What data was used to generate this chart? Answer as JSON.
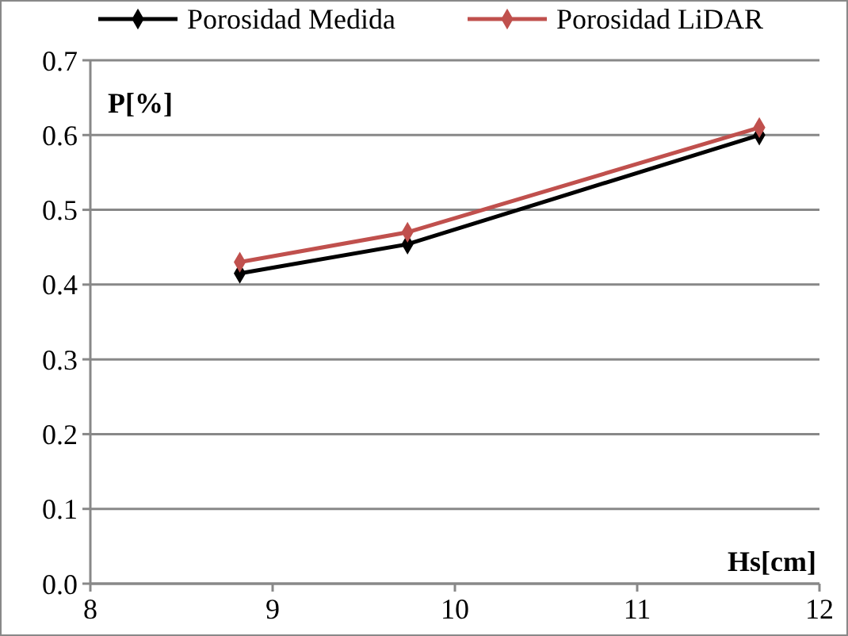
{
  "chart_data": {
    "type": "line",
    "xlabel": "Hs[cm]",
    "ylabel": "P[%]",
    "x": [
      8.82,
      9.74,
      11.67
    ],
    "series": [
      {
        "name": "Porosidad Medida",
        "color": "#000000",
        "values": [
          0.415,
          0.454,
          0.6
        ]
      },
      {
        "name": "Porosidad LiDAR",
        "color": "#c0504d",
        "values": [
          0.43,
          0.47,
          0.61
        ]
      }
    ],
    "xlim": [
      8,
      12
    ],
    "xticks": [
      8,
      9,
      10,
      11,
      12
    ],
    "ylim": [
      0,
      0.7
    ],
    "yticks": [
      {
        "value": 0,
        "label": "0.0"
      },
      {
        "value": 0.1,
        "label": "0.1"
      },
      {
        "value": 0.2,
        "label": "0.2"
      },
      {
        "value": 0.3,
        "label": "0.3"
      },
      {
        "value": 0.4,
        "label": "0.4"
      },
      {
        "value": 0.5,
        "label": "0.5"
      },
      {
        "value": 0.6,
        "label": "0.6"
      },
      {
        "value": 0.7,
        "label": "0.7"
      }
    ],
    "grid": "y",
    "legend": "top",
    "marker": "diamond",
    "line_style": "solid"
  }
}
